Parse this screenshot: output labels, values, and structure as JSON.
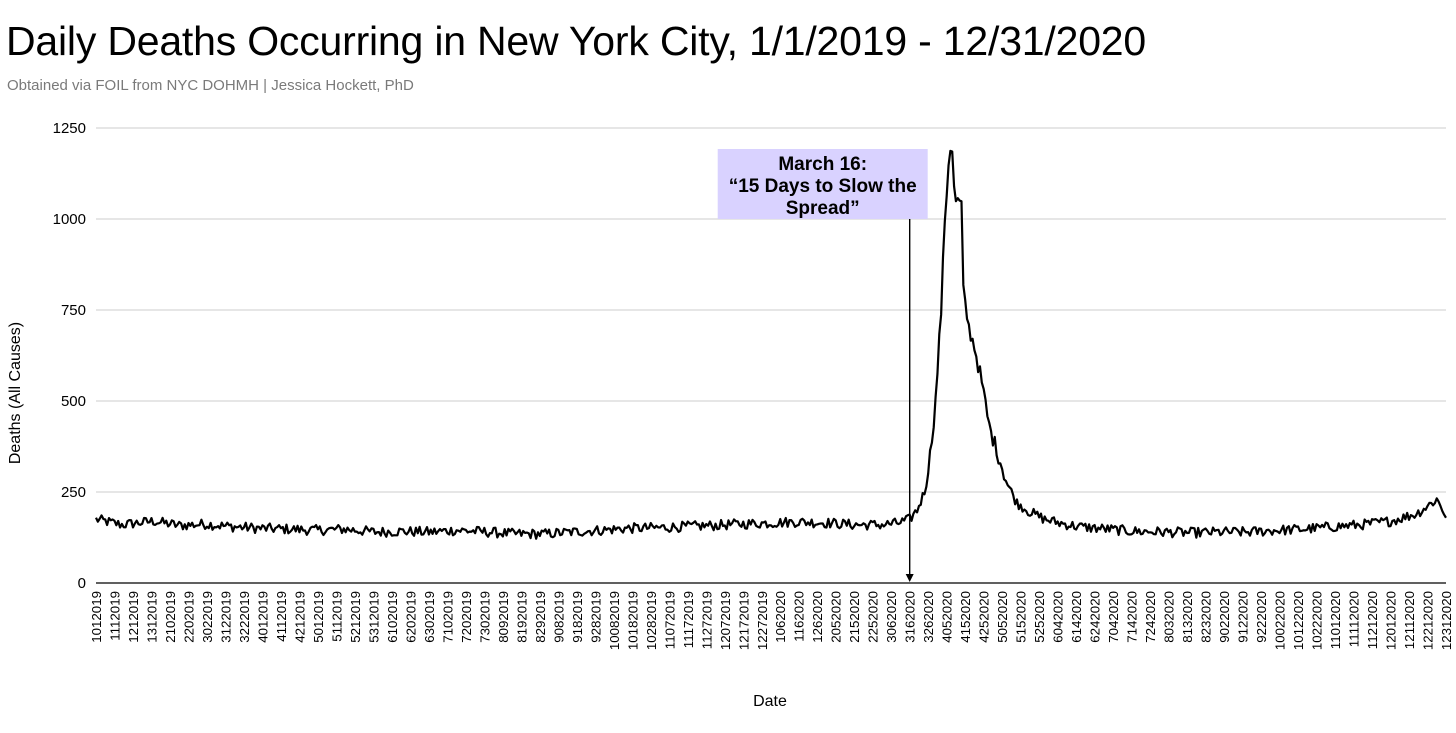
{
  "chart_data": {
    "type": "line",
    "title": "Daily Deaths Occurring in New York City, 1/1/2019 - 12/31/2020",
    "subtitle": "Obtained via FOIL from NYC DOHMH | Jessica Hockett, PhD",
    "xlabel": "Date",
    "ylabel": "Deaths (All Causes)",
    "ylim": [
      0,
      1250
    ],
    "yticks": [
      0,
      250,
      500,
      750,
      1000,
      1250
    ],
    "grid": true,
    "x_start": "2019-01-01",
    "x_end": "2020-12-31",
    "x_tick_labels": [
      "1012019",
      "1112019",
      "1212019",
      "1312019",
      "2102019",
      "2202019",
      "3022019",
      "3122019",
      "3222019",
      "4012019",
      "4112019",
      "4212019",
      "5012019",
      "5112019",
      "5212019",
      "5312019",
      "6102019",
      "6202019",
      "6302019",
      "7102019",
      "7202019",
      "7302019",
      "8092019",
      "8192019",
      "8292019",
      "9082019",
      "9182019",
      "9282019",
      "10082019",
      "10182019",
      "10282019",
      "11072019",
      "11172019",
      "11272019",
      "12072019",
      "12172019",
      "12272019",
      "1062020",
      "1162020",
      "1262020",
      "2052020",
      "2152020",
      "2252020",
      "3062020",
      "3162020",
      "3262020",
      "4052020",
      "4152020",
      "4252020",
      "5052020",
      "5152020",
      "5252020",
      "6042020",
      "6142020",
      "6242020",
      "7042020",
      "7142020",
      "7242020",
      "8032020",
      "8132020",
      "8232020",
      "9022020",
      "9122020",
      "9222020",
      "10022020",
      "10122020",
      "10222020",
      "11012020",
      "11112020",
      "11212020",
      "12012020",
      "12112020",
      "12212020",
      "12312020"
    ],
    "series": [
      {
        "points": [
          [
            "2019-01-01",
            175
          ],
          [
            "2019-01-15",
            160
          ],
          [
            "2019-02-01",
            170
          ],
          [
            "2019-02-15",
            158
          ],
          [
            "2019-03-01",
            162
          ],
          [
            "2019-03-15",
            155
          ],
          [
            "2019-04-01",
            150
          ],
          [
            "2019-04-15",
            148
          ],
          [
            "2019-05-01",
            145
          ],
          [
            "2019-05-15",
            148
          ],
          [
            "2019-06-01",
            140
          ],
          [
            "2019-06-15",
            142
          ],
          [
            "2019-07-01",
            140
          ],
          [
            "2019-07-15",
            145
          ],
          [
            "2019-08-01",
            140
          ],
          [
            "2019-08-15",
            135
          ],
          [
            "2019-09-01",
            135
          ],
          [
            "2019-09-15",
            140
          ],
          [
            "2019-10-01",
            145
          ],
          [
            "2019-10-15",
            150
          ],
          [
            "2019-11-01",
            152
          ],
          [
            "2019-11-15",
            155
          ],
          [
            "2019-12-01",
            158
          ],
          [
            "2019-12-15",
            162
          ],
          [
            "2020-01-01",
            165
          ],
          [
            "2020-01-15",
            168
          ],
          [
            "2020-02-01",
            165
          ],
          [
            "2020-02-15",
            160
          ],
          [
            "2020-03-01",
            160
          ],
          [
            "2020-03-10",
            165
          ],
          [
            "2020-03-16",
            175
          ],
          [
            "2020-03-20",
            200
          ],
          [
            "2020-03-24",
            250
          ],
          [
            "2020-03-27",
            350
          ],
          [
            "2020-03-30",
            500
          ],
          [
            "2020-04-02",
            750
          ],
          [
            "2020-04-04",
            1000
          ],
          [
            "2020-04-06",
            1150
          ],
          [
            "2020-04-07",
            1200
          ],
          [
            "2020-04-08",
            1190
          ],
          [
            "2020-04-09",
            1080
          ],
          [
            "2020-04-10",
            1050
          ],
          [
            "2020-04-13",
            1040
          ],
          [
            "2020-04-14",
            800
          ],
          [
            "2020-04-17",
            700
          ],
          [
            "2020-04-20",
            650
          ],
          [
            "2020-04-24",
            550
          ],
          [
            "2020-04-28",
            430
          ],
          [
            "2020-05-03",
            350
          ],
          [
            "2020-05-08",
            270
          ],
          [
            "2020-05-13",
            220
          ],
          [
            "2020-05-20",
            195
          ],
          [
            "2020-05-28",
            175
          ],
          [
            "2020-06-05",
            165
          ],
          [
            "2020-06-15",
            155
          ],
          [
            "2020-07-01",
            148
          ],
          [
            "2020-07-15",
            142
          ],
          [
            "2020-08-01",
            140
          ],
          [
            "2020-08-15",
            138
          ],
          [
            "2020-09-01",
            140
          ],
          [
            "2020-09-15",
            140
          ],
          [
            "2020-10-01",
            145
          ],
          [
            "2020-10-15",
            148
          ],
          [
            "2020-11-01",
            155
          ],
          [
            "2020-11-15",
            160
          ],
          [
            "2020-12-01",
            170
          ],
          [
            "2020-12-15",
            190
          ],
          [
            "2020-12-22",
            215
          ],
          [
            "2020-12-26",
            230
          ],
          [
            "2020-12-31",
            185
          ]
        ]
      }
    ],
    "annotations": [
      {
        "x": "2020-03-16",
        "y_from": 1000,
        "y_to": 0,
        "text": [
          "March 16:",
          "“15 Days to Slow the",
          "Spread”"
        ],
        "background": "#d9d2ff"
      }
    ],
    "colors": {
      "line": "#000000",
      "grid": "#cccccc",
      "annotation_bg": "#d9d2ff",
      "subtitle": "#7a7a7a"
    }
  }
}
